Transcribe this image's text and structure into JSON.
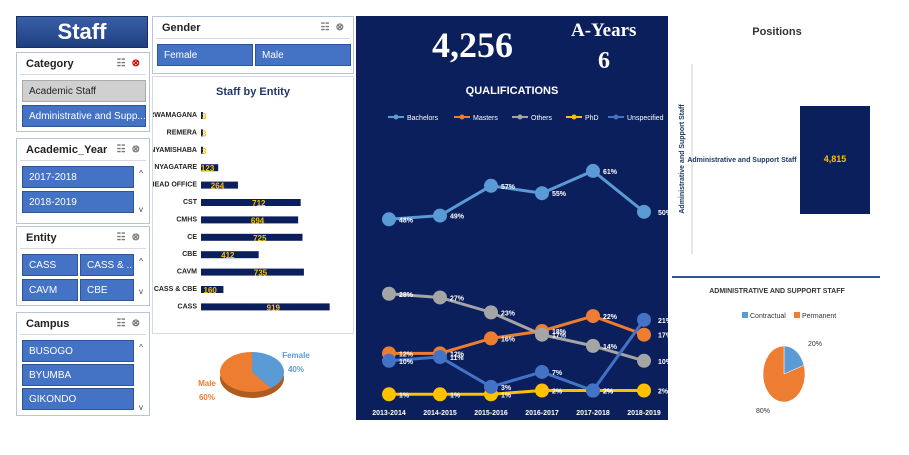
{
  "title": "Staff",
  "slicers": {
    "category": {
      "label": "Category",
      "items": [
        "Academic Staff",
        "Administrative and Supp..."
      ]
    },
    "gender": {
      "label": "Gender",
      "items": [
        "Female",
        "Male"
      ]
    },
    "academic_year": {
      "label": "Academic_Year",
      "items": [
        "2017-2018",
        "2018-2019"
      ]
    },
    "entity": {
      "label": "Entity",
      "items": [
        "CASS",
        "CASS & ...",
        "CAVM",
        "CBE"
      ]
    },
    "campus": {
      "label": "Campus",
      "items": [
        "BUSOGO",
        "BYUMBA",
        "GIKONDO"
      ]
    }
  },
  "kpi": {
    "total": "4,256",
    "years_label": "A-Years",
    "years_value": "6"
  },
  "icons": {
    "multiselect": "multi-select-icon",
    "clear": "clear-filter-icon",
    "scroll_up": "scroll-up-icon",
    "scroll_down": "scroll-down-icon"
  },
  "colors": {
    "navy": "#0b1f5c",
    "slicer_blue": "#4472c4",
    "bachelors": "#5b9bd5",
    "masters": "#ed7d31",
    "others": "#a5a5a5",
    "phd": "#ffc000",
    "unspecified": "#4472c4"
  },
  "chart_data": [
    {
      "type": "bar",
      "title": "Staff by Entity",
      "categories": [
        "RWAMAGANA",
        "REMERA",
        "NYAMISHABA",
        "NYAGATARE",
        "HEAD OFFICE",
        "CST",
        "CMHS",
        "CE",
        "CBE",
        "CAVM",
        "CASS & CBE",
        "CASS"
      ],
      "values": [
        3,
        3,
        3,
        123,
        264,
        712,
        694,
        725,
        412,
        735,
        160,
        919
      ],
      "labels": [
        "3",
        "3",
        "3",
        "123",
        "264",
        "712",
        "694",
        "725",
        "412",
        "735",
        "160",
        "919"
      ],
      "xlim": [
        0,
        1000
      ]
    },
    {
      "type": "pie",
      "categories": [
        "Male",
        "Female"
      ],
      "values": [
        60,
        40
      ],
      "labels": [
        "60%",
        "40%"
      ]
    },
    {
      "type": "line",
      "title": "QUALIFICATIONS",
      "categories": [
        "2013-2014",
        "2014-2015",
        "2015-2016",
        "2016-2017",
        "2017-2018",
        "2018-2019"
      ],
      "series": [
        {
          "name": "Bachelors",
          "values": [
            48,
            49,
            57,
            55,
            61,
            50
          ],
          "labels": [
            "48%",
            "49%",
            "57%",
            "55%",
            "61%",
            "50%"
          ]
        },
        {
          "name": "Masters",
          "values": [
            12,
            12,
            16,
            18,
            22,
            17
          ],
          "labels": [
            "12%",
            "12%",
            "16%",
            "18%",
            "22%",
            "17%"
          ]
        },
        {
          "name": "Others",
          "values": [
            28,
            27,
            23,
            17,
            14,
            10
          ],
          "labels": [
            "28%",
            "27%",
            "23%",
            "17%",
            "14%",
            "10%"
          ]
        },
        {
          "name": "PhD",
          "values": [
            1,
            1,
            1,
            2,
            2,
            2
          ],
          "labels": [
            "1%",
            "1%",
            "1%",
            "2%",
            "2%",
            "2%"
          ]
        },
        {
          "name": "Unspecified",
          "values": [
            10,
            11,
            3,
            7,
            2,
            21
          ],
          "labels": [
            "10%",
            "11%",
            "3%",
            "7%",
            "2%",
            "21%"
          ]
        }
      ],
      "ylim": [
        0,
        65
      ],
      "legend": "top"
    },
    {
      "type": "bar",
      "title": "Positions",
      "ylabel": "Administrative and Support Staff",
      "categories": [
        "Administrative and Support Staff"
      ],
      "values": [
        4815
      ],
      "labels": [
        "4,815"
      ]
    },
    {
      "type": "pie",
      "title": "ADMINISTRATIVE AND SUPPORT STAFF",
      "categories": [
        "Contractual",
        "Permanent"
      ],
      "values": [
        20,
        80
      ],
      "labels": [
        "20%",
        "80%"
      ],
      "legend": "top"
    }
  ]
}
